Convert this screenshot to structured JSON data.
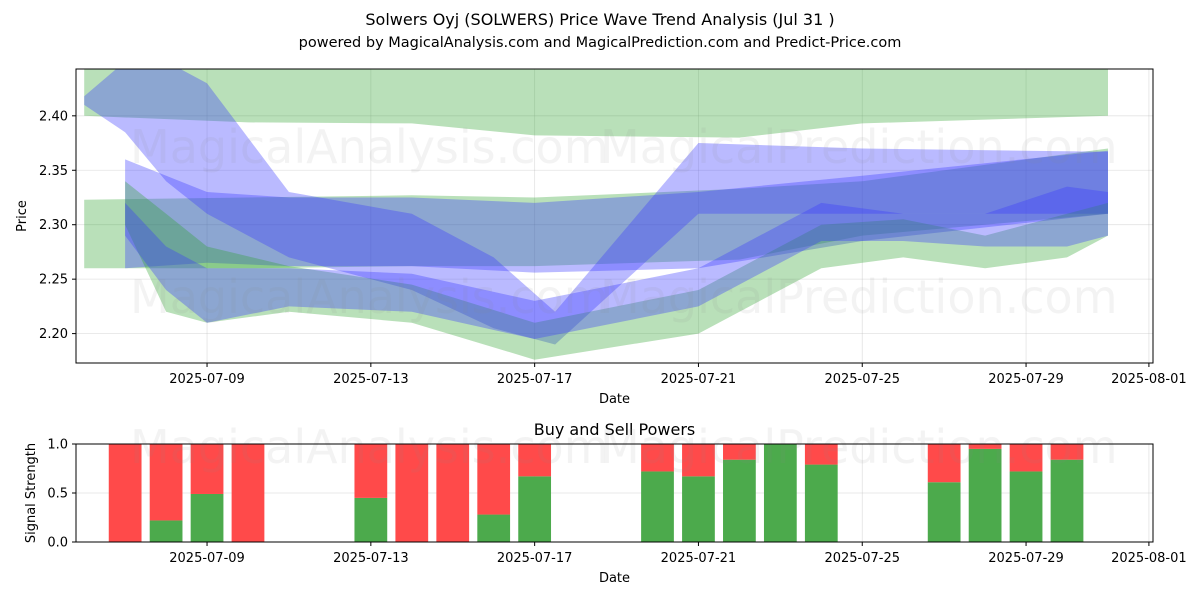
{
  "title": "Solwers Oyj (SOLWERS) Price Wave Trend Analysis (Jul 31 )",
  "subtitle": "powered by MagicalAnalysis.com and MagicalPrediction.com and Predict-Price.com",
  "watermarks": [
    "MagicalAnalysis.com",
    "MagicalPrediction.com"
  ],
  "colors": {
    "green": "#2ca02c",
    "blue": "#3a3aff",
    "buy": "#4caa4c",
    "sell": "#ff4a4a"
  },
  "chart_data": [
    {
      "type": "area",
      "xlabel": "Date",
      "ylabel": "Price",
      "xlim": [
        "2025-07-05.8",
        "2025-08-01.1"
      ],
      "ylim": [
        2.173,
        2.443
      ],
      "x_ticks": [
        "2025-07-09",
        "2025-07-13",
        "2025-07-17",
        "2025-07-21",
        "2025-07-25",
        "2025-07-29",
        "2025-08-01"
      ],
      "y_ticks": [
        "2.20",
        "2.25",
        "2.30",
        "2.35",
        "2.40"
      ],
      "grid": true,
      "bands": [
        {
          "color": "green",
          "x": [
            "2025-07-06",
            "2025-07-10",
            "2025-07-14",
            "2025-07-17",
            "2025-07-22",
            "2025-07-25",
            "2025-07-31"
          ],
          "upper": [
            2.45,
            2.45,
            2.45,
            2.45,
            2.45,
            2.45,
            2.45
          ],
          "lower": [
            2.4,
            2.394,
            2.393,
            2.382,
            2.38,
            2.393,
            2.4
          ]
        },
        {
          "color": "green",
          "x": [
            "2025-07-06",
            "2025-07-10",
            "2025-07-14",
            "2025-07-17",
            "2025-07-22",
            "2025-07-25",
            "2025-07-31"
          ],
          "upper": [
            2.323,
            2.325,
            2.327,
            2.325,
            2.333,
            2.34,
            2.37
          ],
          "lower": [
            2.26,
            2.26,
            2.262,
            2.262,
            2.268,
            2.29,
            2.31
          ]
        },
        {
          "color": "blue",
          "x": [
            "2025-07-06",
            "2025-07-07",
            "2025-07-08",
            "2025-07-09",
            "2025-07-11",
            "2025-07-14",
            "2025-07-16",
            "2025-07-17.5",
            "2025-07-21",
            "2025-07-25",
            "2025-07-31"
          ],
          "upper": [
            2.418,
            2.45,
            2.45,
            2.43,
            2.33,
            2.31,
            2.27,
            2.22,
            2.375,
            2.37,
            2.367
          ],
          "lower": [
            2.41,
            2.385,
            2.34,
            2.31,
            2.27,
            2.24,
            2.205,
            2.19,
            2.31,
            2.31,
            2.31
          ]
        },
        {
          "color": "blue",
          "x": [
            "2025-07-07",
            "2025-07-09",
            "2025-07-11",
            "2025-07-14",
            "2025-07-17",
            "2025-07-21",
            "2025-07-25",
            "2025-07-31"
          ],
          "upper": [
            2.36,
            2.33,
            2.325,
            2.325,
            2.32,
            2.33,
            2.345,
            2.368
          ],
          "lower": [
            2.26,
            2.265,
            2.262,
            2.262,
            2.256,
            2.26,
            2.285,
            2.31
          ]
        },
        {
          "color": "green",
          "x": [
            "2025-07-07",
            "2025-07-08",
            "2025-07-09",
            "2025-07-11",
            "2025-07-14",
            "2025-07-17",
            "2025-07-21",
            "2025-07-24",
            "2025-07-26",
            "2025-07-28",
            "2025-07-30",
            "2025-07-31"
          ],
          "upper": [
            2.34,
            2.31,
            2.28,
            2.262,
            2.245,
            2.21,
            2.24,
            2.3,
            2.305,
            2.29,
            2.31,
            2.32
          ],
          "lower": [
            2.3,
            2.22,
            2.21,
            2.22,
            2.21,
            2.176,
            2.2,
            2.26,
            2.27,
            2.26,
            2.27,
            2.29
          ]
        },
        {
          "color": "blue",
          "x": [
            "2025-07-07",
            "2025-07-08",
            "2025-07-09",
            "2025-07-11",
            "2025-07-14",
            "2025-07-17",
            "2025-07-21",
            "2025-07-24",
            "2025-07-26",
            "2025-07-28",
            "2025-07-30",
            "2025-07-31"
          ],
          "upper": [
            2.32,
            2.28,
            2.26,
            2.26,
            2.255,
            2.23,
            2.26,
            2.32,
            2.31,
            2.31,
            2.335,
            2.33
          ],
          "lower": [
            2.29,
            2.24,
            2.21,
            2.225,
            2.22,
            2.195,
            2.225,
            2.285,
            2.285,
            2.28,
            2.28,
            2.29
          ]
        }
      ]
    },
    {
      "type": "bar",
      "stacked": true,
      "title": "Buy and Sell Powers",
      "xlabel": "Date",
      "ylabel": "Signal Strength",
      "ylim": [
        0,
        1.0
      ],
      "y_ticks": [
        "0.0",
        "0.5",
        "1.0"
      ],
      "x_ticks": [
        "2025-07-09",
        "2025-07-13",
        "2025-07-17",
        "2025-07-21",
        "2025-07-25",
        "2025-07-29",
        "2025-08-01"
      ],
      "grid": true,
      "categories": [
        "2025-07-07",
        "2025-07-08",
        "2025-07-09",
        "2025-07-10",
        "2025-07-13",
        "2025-07-14",
        "2025-07-15",
        "2025-07-16",
        "2025-07-17",
        "2025-07-20",
        "2025-07-21",
        "2025-07-22",
        "2025-07-23",
        "2025-07-24",
        "2025-07-27",
        "2025-07-28",
        "2025-07-29",
        "2025-07-30"
      ],
      "series": [
        {
          "color": "buy",
          "values": [
            0.0,
            0.22,
            0.49,
            0.0,
            0.45,
            0.0,
            0.0,
            0.28,
            0.67,
            0.72,
            0.67,
            0.84,
            1.0,
            0.79,
            0.61,
            0.95,
            0.72,
            0.84
          ]
        },
        {
          "color": "sell",
          "values": [
            1.0,
            0.78,
            0.51,
            1.0,
            0.55,
            1.0,
            1.0,
            0.72,
            0.33,
            0.28,
            0.33,
            0.16,
            0.0,
            0.21,
            0.39,
            0.05,
            0.28,
            0.16
          ]
        }
      ]
    }
  ]
}
